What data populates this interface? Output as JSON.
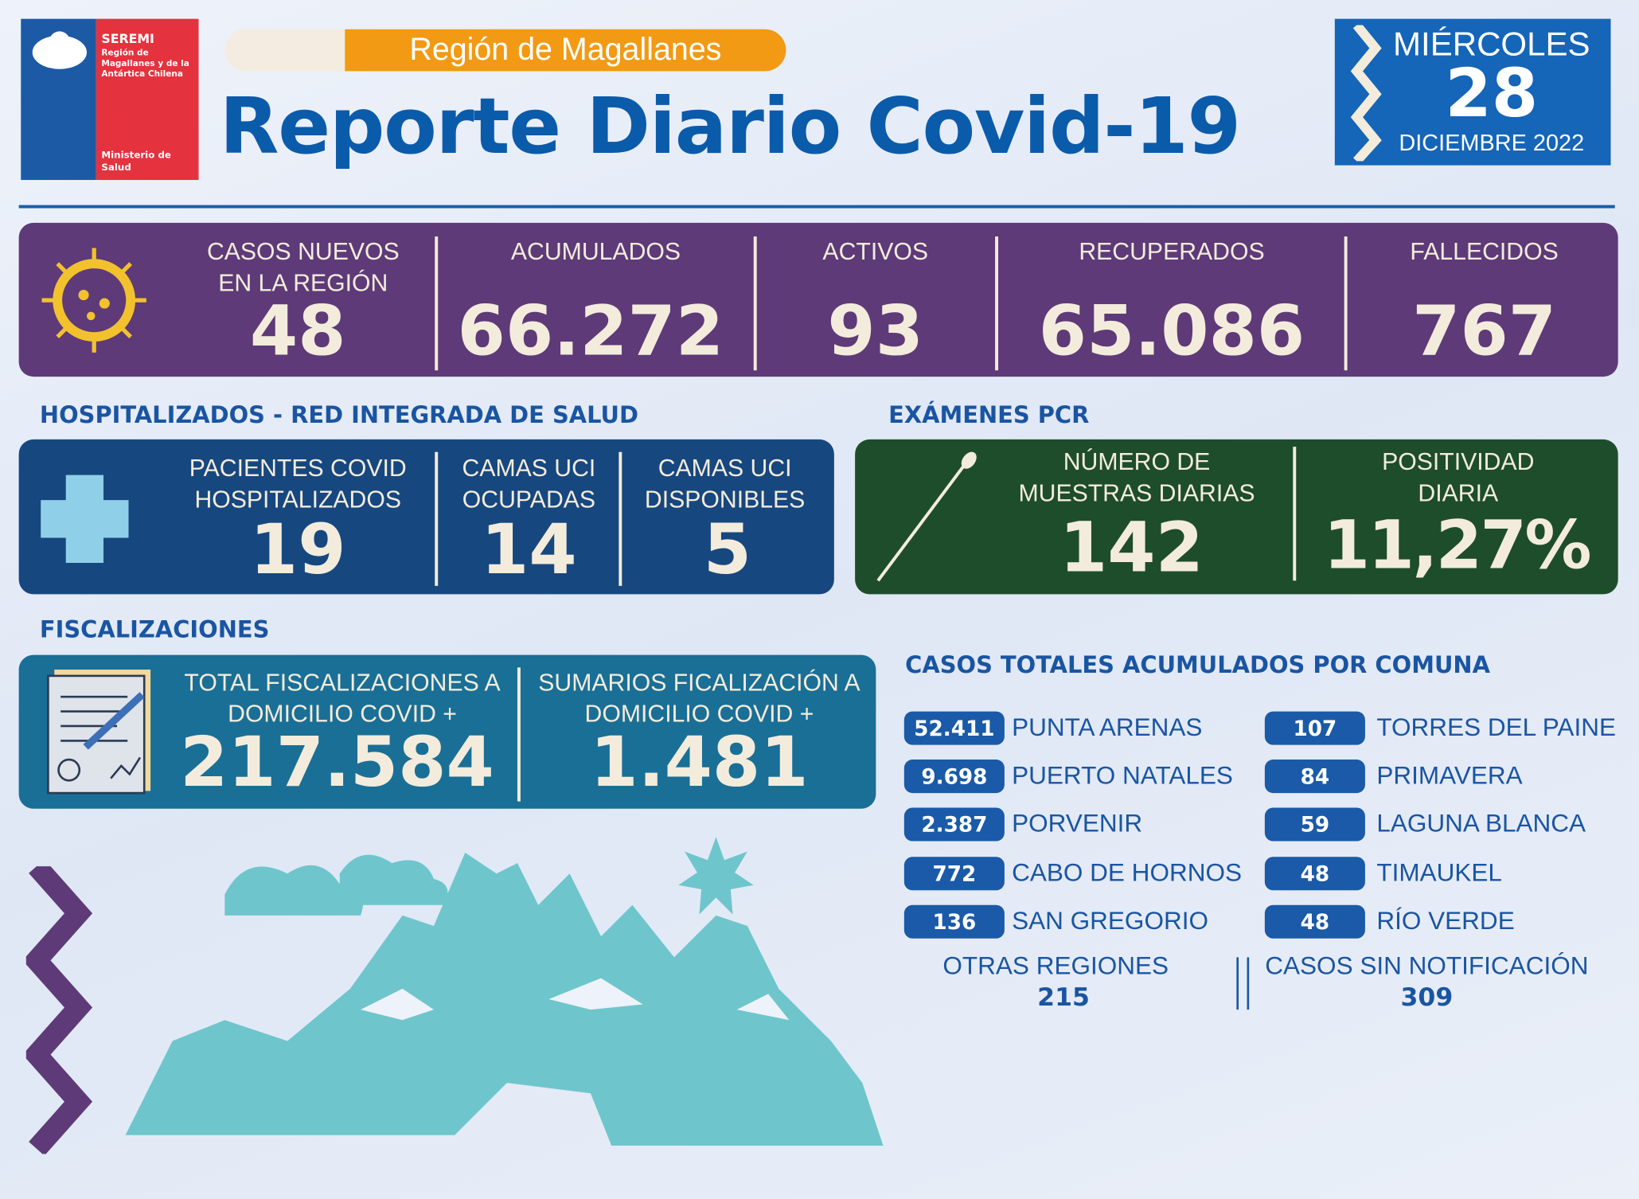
{
  "logo": {
    "org": "SEREMI",
    "region": "Región de Magallanes y de la Antártica Chilena",
    "ministry": "Ministerio de Salud"
  },
  "header": {
    "region": "Región de Magallanes",
    "title": "Reporte Diario Covid-19"
  },
  "date": {
    "weekday": "MIÉRCOLES",
    "day": "28",
    "month_year": "DICIEMBRE 2022"
  },
  "summary": [
    {
      "label": "CASOS NUEVOS EN LA REGIÓN",
      "value": "48"
    },
    {
      "label": "ACUMULADOS",
      "value": "66.272"
    },
    {
      "label": "ACTIVOS",
      "value": "93"
    },
    {
      "label": "RECUPERADOS",
      "value": "65.086"
    },
    {
      "label": "FALLECIDOS",
      "value": "767"
    }
  ],
  "hospital": {
    "title": "HOSPITALIZADOS - RED INTEGRADA DE SALUD",
    "items": [
      {
        "label": "PACIENTES COVID HOSPITALIZADOS",
        "value": "19"
      },
      {
        "label": "CAMAS UCI OCUPADAS",
        "value": "14"
      },
      {
        "label": "CAMAS UCI DISPONIBLES",
        "value": "5"
      }
    ]
  },
  "pcr": {
    "title": "EXÁMENES PCR",
    "items": [
      {
        "label": "NÚMERO DE MUESTRAS DIARIAS",
        "value": "142"
      },
      {
        "label": "POSITIVIDAD DIARIA",
        "value": "11,27%"
      }
    ]
  },
  "inspections": {
    "title": "FISCALIZACIONES",
    "items": [
      {
        "label": "TOTAL FISCALIZACIONES A DOMICILIO COVID +",
        "value": "217.584"
      },
      {
        "label": "SUMARIOS FICALIZACIÓN A DOMICILIO COVID +",
        "value": "1.481"
      }
    ]
  },
  "communes": {
    "title": "CASOS TOTALES ACUMULADOS POR COMUNA",
    "rows": [
      {
        "value": "52.411",
        "name": "PUNTA ARENAS"
      },
      {
        "value": "9.698",
        "name": "PUERTO NATALES"
      },
      {
        "value": "2.387",
        "name": "PORVENIR"
      },
      {
        "value": "772",
        "name": "CABO DE HORNOS"
      },
      {
        "value": "136",
        "name": "SAN GREGORIO"
      },
      {
        "value": "107",
        "name": "TORRES DEL PAINE"
      },
      {
        "value": "84",
        "name": "PRIMAVERA"
      },
      {
        "value": "59",
        "name": "LAGUNA BLANCA"
      },
      {
        "value": "48",
        "name": "TIMAUKEL"
      },
      {
        "value": "48",
        "name": "RÍO VERDE"
      }
    ],
    "others": {
      "label": "OTRAS REGIONES",
      "value": "215"
    },
    "unnotified": {
      "label": "CASOS SIN NOTIFICACIÓN",
      "value": "309"
    }
  }
}
